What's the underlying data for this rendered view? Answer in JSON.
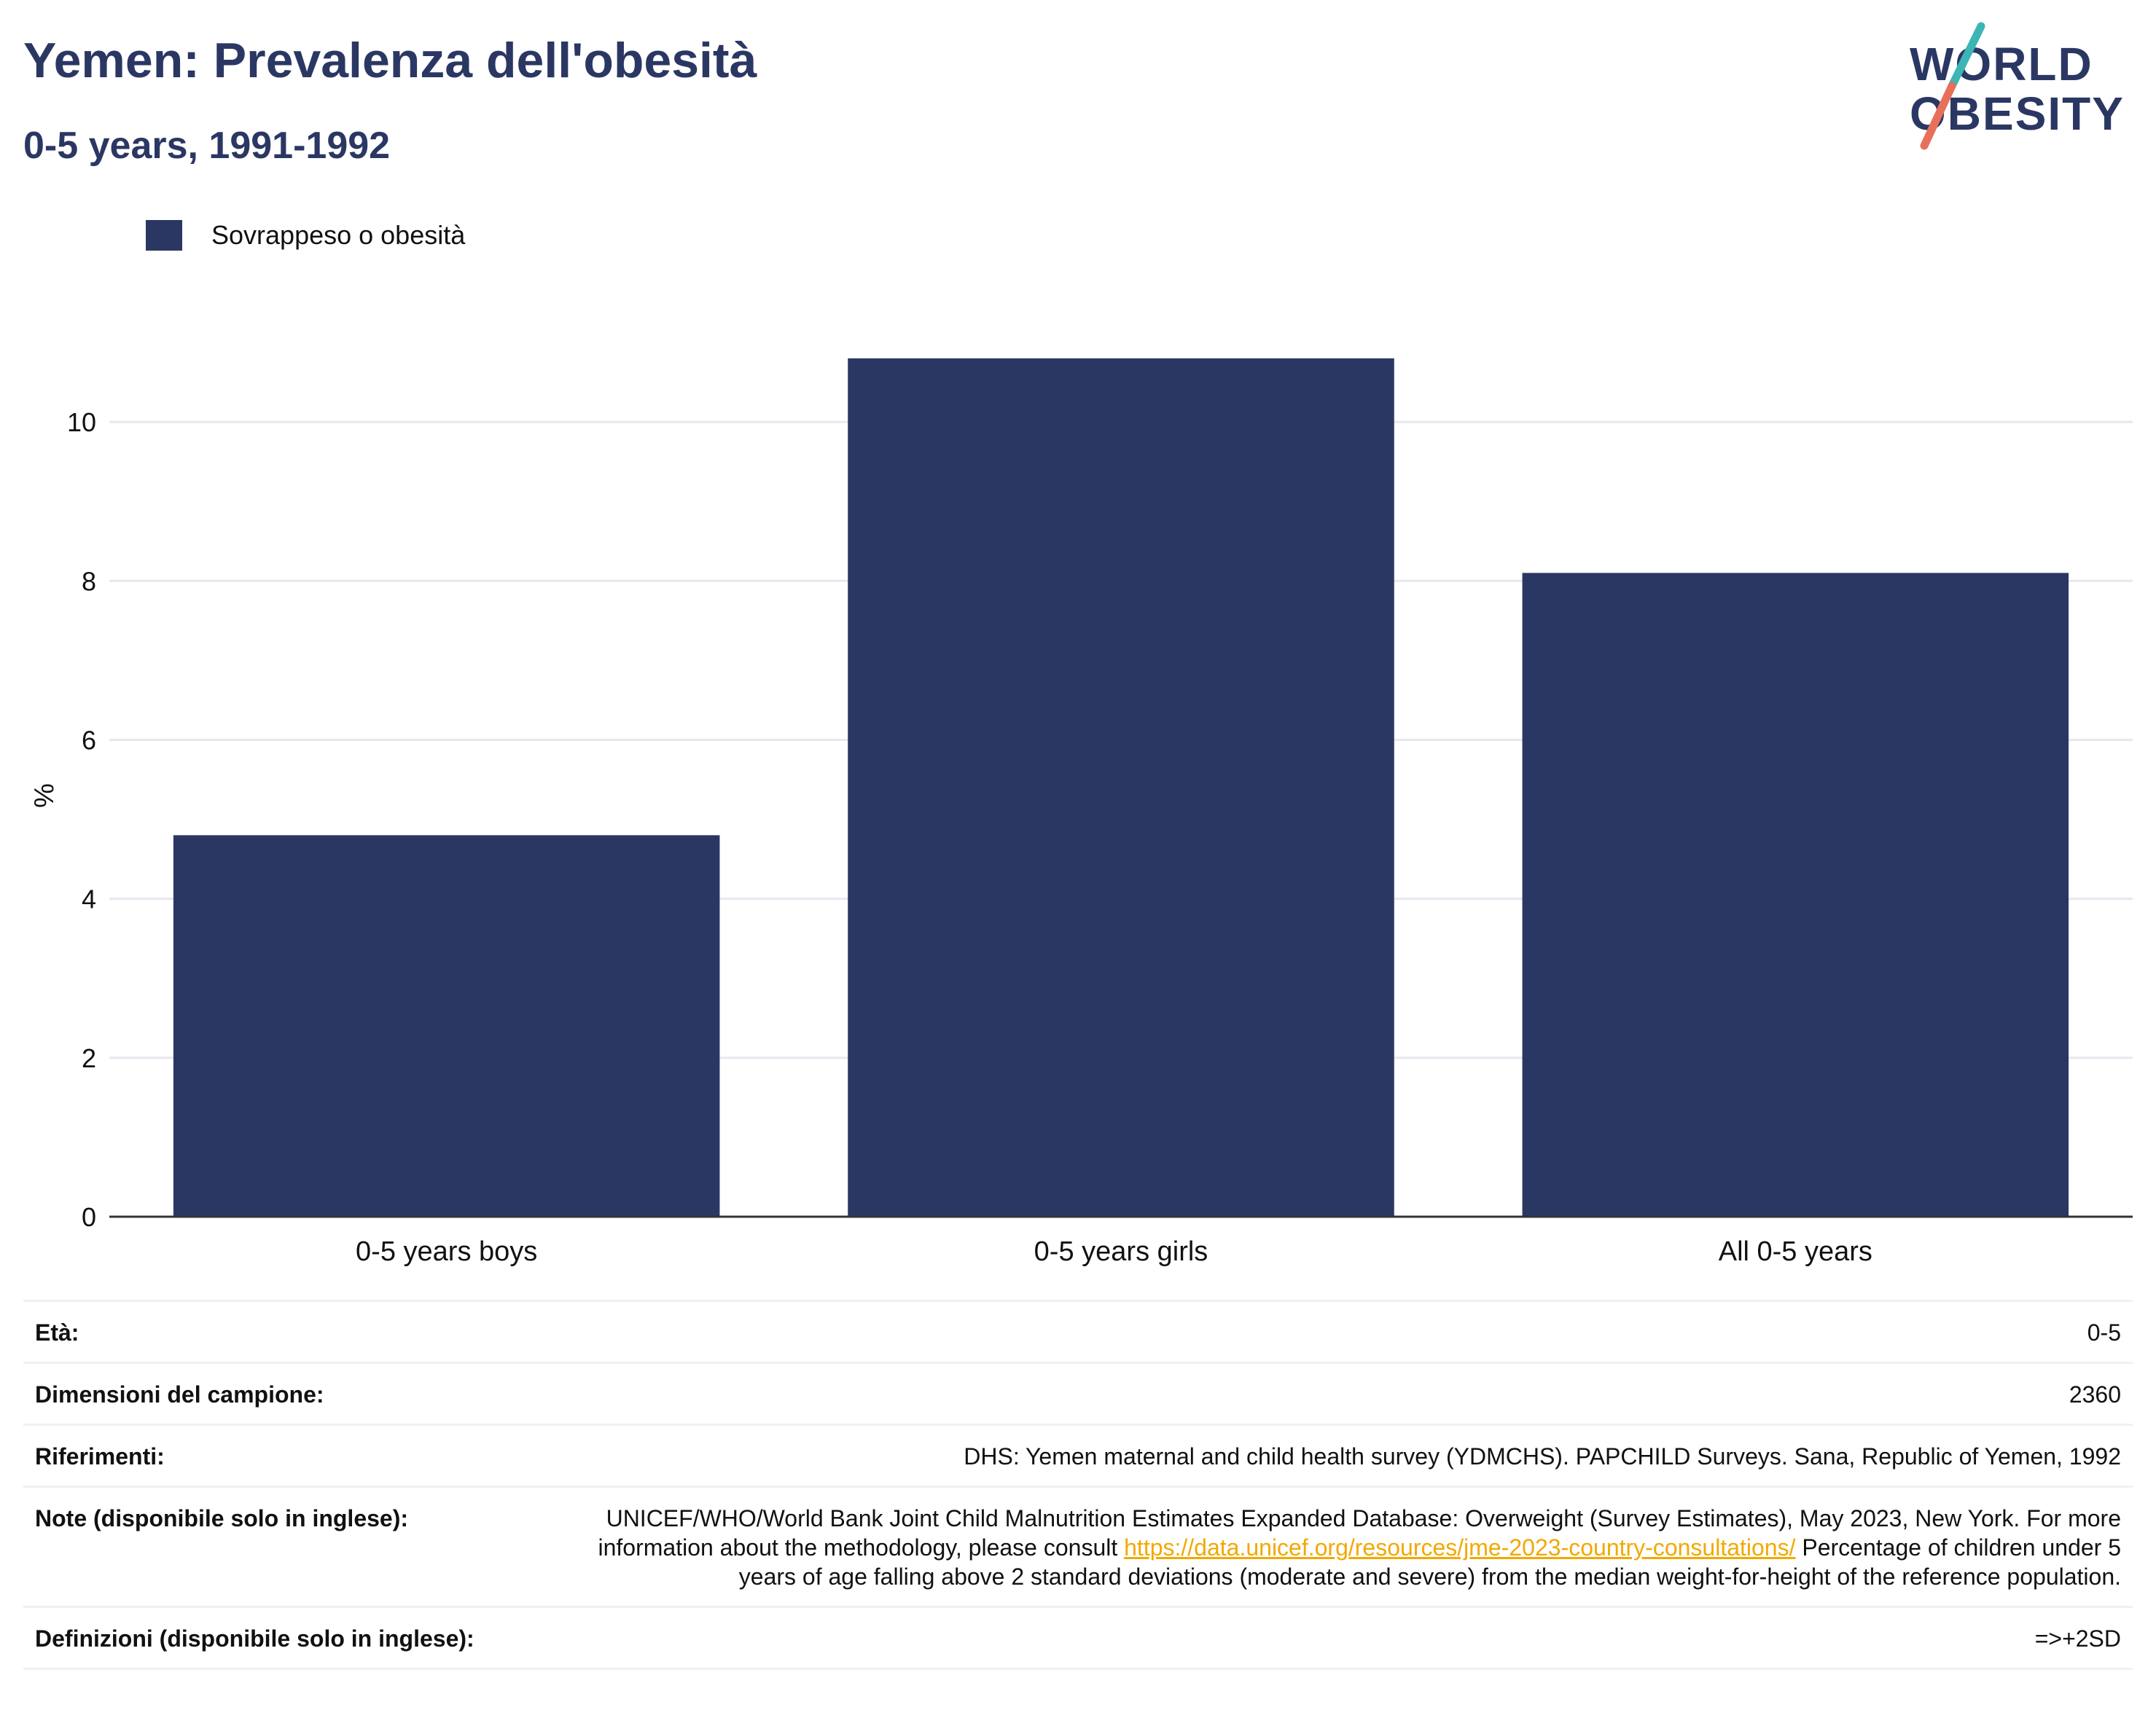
{
  "header": {
    "title": "Yemen: Prevalenza dell'obesità",
    "subtitle": "0-5 years, 1991-1992"
  },
  "logo": {
    "line1": "WORLD",
    "line2": "OBESITY",
    "colors": {
      "text": "#2b3763",
      "accent_teal": "#3bb5b5",
      "accent_coral": "#e8705a"
    }
  },
  "colors": {
    "bar": "#2b3763",
    "title": "#2b3763",
    "grid": "#e6e8ef",
    "link": "#f2a900"
  },
  "chart_data": {
    "type": "bar",
    "categories": [
      "0-5 years boys",
      "0-5 years girls",
      "All 0-5 years"
    ],
    "series": [
      {
        "name": "Sovrappeso o obesità",
        "values": [
          4.8,
          10.8,
          8.1
        ]
      }
    ],
    "ylabel": "%",
    "ylim": [
      0,
      11
    ],
    "yticks": [
      0,
      2,
      4,
      6,
      8,
      10
    ],
    "grid": true,
    "legend_position": "top-left"
  },
  "info": {
    "age_label": "Età:",
    "age_value": "0-5",
    "sample_label": "Dimensioni del campione:",
    "sample_value": "2360",
    "refs_label": "Riferimenti:",
    "refs_value": "DHS: Yemen maternal and child health survey (YDMCHS). PAPCHILD Surveys. Sana, Republic of Yemen, 1992",
    "notes_label": "Note (disponibile solo in inglese):",
    "notes_text1": "UNICEF/WHO/World Bank Joint Child Malnutrition Estimates Expanded Database: Overweight (Survey Estimates), May 2023, New York. For more information about the methodology, please consult ",
    "notes_link": "https://data.unicef.org/resources/jme-2023-country-consultations/",
    "notes_text2": "Percentage of children under 5 years of age falling above 2 standard deviations (moderate and severe) from the median weight-for-height of the reference population.",
    "defs_label": "Definizioni (disponibile solo in inglese):",
    "defs_value": "=>+2SD"
  }
}
